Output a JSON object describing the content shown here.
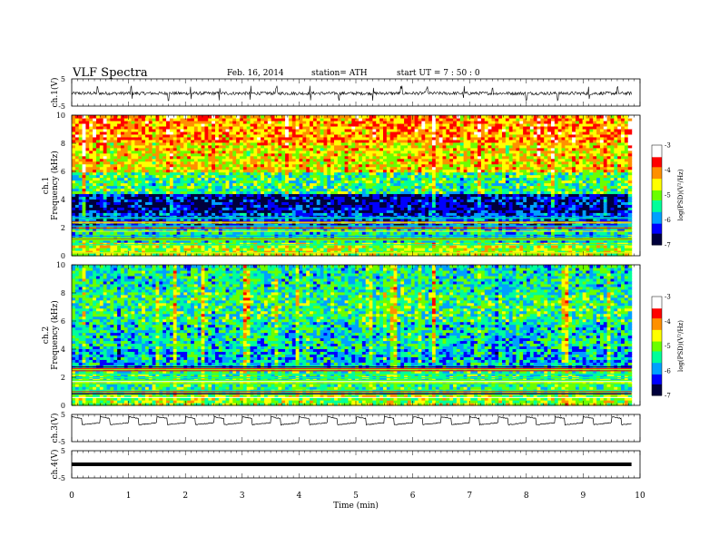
{
  "header": {
    "title": "VLF  Spectra",
    "date": "Feb. 16, 2014",
    "station": "station= ATH",
    "start_ut": "start  UT  =    7 : 50 : 0"
  },
  "chart_data": [
    {
      "type": "line",
      "panel": "ch1-waveform",
      "ylabel": "ch.1(V)",
      "ylim": [
        -5,
        5
      ],
      "yticks": [
        "5",
        "-5"
      ],
      "xlim": [
        0,
        10
      ],
      "baseline": -0.3,
      "amplitude": 0.6,
      "spike_times": [
        0.45,
        1.05,
        1.7,
        2.1,
        2.6,
        3.15,
        3.6,
        4.2,
        4.7,
        5.3,
        5.8,
        6.25,
        6.9,
        7.4,
        8.0,
        8.55,
        9.1,
        9.6
      ]
    },
    {
      "type": "heatmap",
      "panel": "ch1-spectrogram",
      "ylabel": "ch.1\nFrequency  (kHz)",
      "ylim": [
        0,
        10
      ],
      "yticks": [
        "0",
        "2",
        "4",
        "6",
        "8",
        "10"
      ],
      "xlim": [
        0,
        9.85
      ],
      "colorbar": {
        "label": "log(PSD)(V²/Hz)",
        "range": [
          -7,
          -3
        ],
        "ticks": [
          "-3",
          "-4",
          "-5",
          "-6",
          "-7"
        ],
        "colors": [
          "#00003c",
          "#0000ff",
          "#00a0ff",
          "#00ff9a",
          "#6aff00",
          "#ffff00",
          "#ff9000",
          "#ff0000",
          "#ffffff"
        ]
      },
      "bands": [
        {
          "fmin": 0,
          "fmax": 1.0,
          "level": -4.8
        },
        {
          "fmin": 1.0,
          "fmax": 2.2,
          "level": -5.6
        },
        {
          "fmin": 2.2,
          "fmax": 3.0,
          "level": -6.2
        },
        {
          "fmin": 3.0,
          "fmax": 4.5,
          "level": -6.6
        },
        {
          "fmin": 4.5,
          "fmax": 6.0,
          "level": -5.3
        },
        {
          "fmin": 6.0,
          "fmax": 8.0,
          "level": -4.5
        },
        {
          "fmin": 8.0,
          "fmax": 10.0,
          "level": -4.1
        }
      ]
    },
    {
      "type": "heatmap",
      "panel": "ch2-spectrogram",
      "ylabel": "ch.2\nFrequency  (kHz)",
      "ylim": [
        0,
        10
      ],
      "yticks": [
        "0",
        "2",
        "4",
        "6",
        "8",
        "10"
      ],
      "xlim": [
        0,
        9.85
      ],
      "colorbar": {
        "label": "log(PSD)(V²/Hz)",
        "range": [
          -7,
          -3
        ],
        "ticks": [
          "-3",
          "-4",
          "-5",
          "-6",
          "-7"
        ],
        "colors": [
          "#00003c",
          "#0000ff",
          "#00a0ff",
          "#00ff9a",
          "#6aff00",
          "#ffff00",
          "#ff9000",
          "#ff0000",
          "#ffffff"
        ]
      },
      "bands": [
        {
          "fmin": 0,
          "fmax": 1.0,
          "level": -4.9
        },
        {
          "fmin": 1.0,
          "fmax": 2.5,
          "level": -5.3
        },
        {
          "fmin": 2.5,
          "fmax": 4.0,
          "level": -5.8
        },
        {
          "fmin": 4.0,
          "fmax": 6.0,
          "level": -5.6
        },
        {
          "fmin": 6.0,
          "fmax": 8.0,
          "level": -5.3
        },
        {
          "fmin": 8.0,
          "fmax": 10.0,
          "level": -5.5
        }
      ]
    },
    {
      "type": "line",
      "panel": "ch3-waveform",
      "ylabel": "ch.3(V)",
      "ylim": [
        -5,
        5
      ],
      "yticks": [
        "5",
        "-5"
      ],
      "xlim": [
        0,
        10
      ],
      "pulse_period": 0.5,
      "high": 4.2,
      "low": 1.2
    },
    {
      "type": "line",
      "panel": "ch4-waveform",
      "ylabel": "ch.4(V)",
      "ylim": [
        -5,
        5
      ],
      "yticks": [
        "5",
        "-5"
      ],
      "xlim": [
        0,
        10
      ],
      "value": 0.0
    }
  ],
  "x_axis": {
    "label": "Time  (min)",
    "ticks": [
      "0",
      "1",
      "2",
      "3",
      "4",
      "5",
      "6",
      "7",
      "8",
      "9",
      "10"
    ]
  }
}
